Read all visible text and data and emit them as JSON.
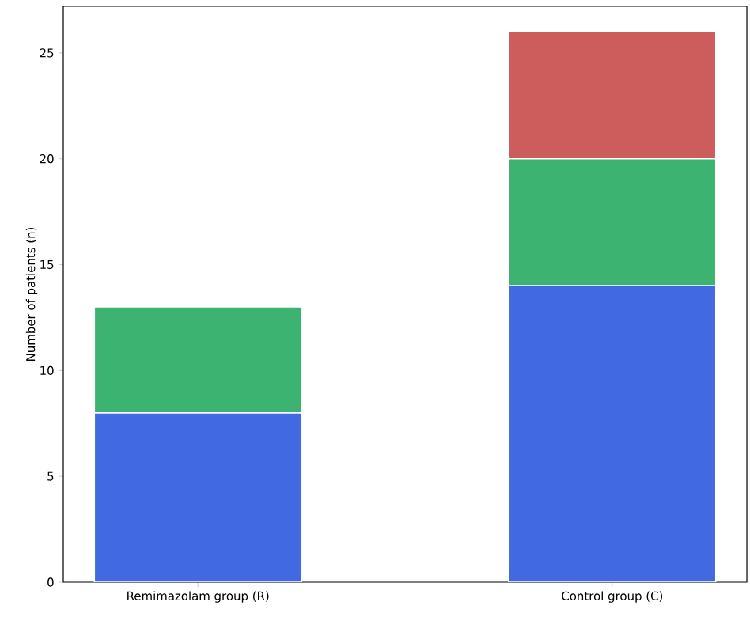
{
  "chart_data": {
    "type": "bar",
    "stacked": true,
    "ylabel": "Number of patients (n)",
    "categories": [
      "Remimazolam group (R)",
      "Control group (C)"
    ],
    "series": [
      {
        "color": "#4169e1",
        "values": [
          8,
          14
        ]
      },
      {
        "color": "#3cb371",
        "values": [
          5,
          6
        ]
      },
      {
        "color": "#cd5c5c",
        "values": [
          0,
          6
        ]
      }
    ],
    "ylim": [
      0,
      27.2
    ],
    "yticks": [
      0,
      5,
      10,
      15,
      20,
      25
    ]
  }
}
